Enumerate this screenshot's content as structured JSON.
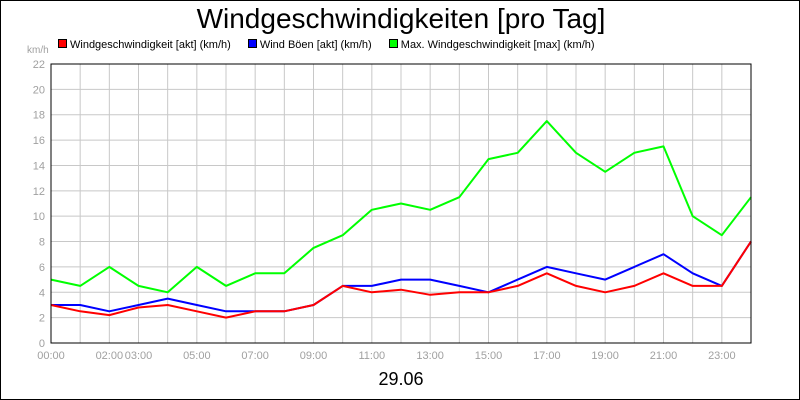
{
  "chart_data": {
    "type": "line",
    "title": "Windgeschwindigkeiten [pro Tag]",
    "unit_label": "km/h",
    "xlabel": "29.06",
    "x_ticks": [
      "00:00",
      "02:00",
      "03:00",
      "05:00",
      "07:00",
      "09:00",
      "11:00",
      "13:00",
      "15:00",
      "17:00",
      "19:00",
      "21:00",
      "23:00"
    ],
    "x_tick_hours": [
      0,
      2,
      3,
      5,
      7,
      9,
      11,
      13,
      15,
      17,
      19,
      21,
      23
    ],
    "x_range_hours": [
      0,
      24
    ],
    "ylim": [
      0,
      22
    ],
    "y_ticks": [
      "0",
      "2",
      "4",
      "6",
      "8",
      "10",
      "12",
      "14",
      "16",
      "18",
      "20",
      "22"
    ],
    "grid": true,
    "legend_position": "top",
    "series": [
      {
        "name": "Windgeschwindigkeit [akt] (km/h)",
        "color": "#ff0000",
        "hours": [
          0,
          1,
          2,
          3,
          4,
          5,
          6,
          7,
          8,
          9,
          10,
          11,
          12,
          13,
          14,
          15,
          16,
          17,
          18,
          19,
          20,
          21,
          22,
          23,
          24
        ],
        "values": [
          3.0,
          2.5,
          2.2,
          2.8,
          3.0,
          2.5,
          2.0,
          2.5,
          2.5,
          3.0,
          4.5,
          4.0,
          4.2,
          3.8,
          4.0,
          4.0,
          4.5,
          5.5,
          4.5,
          4.0,
          4.5,
          5.5,
          4.5,
          4.5,
          8.0
        ]
      },
      {
        "name": "Wind Böen [akt] (km/h)",
        "color": "#0000ff",
        "hours": [
          0,
          1,
          2,
          3,
          4,
          5,
          6,
          7,
          8,
          9,
          10,
          11,
          12,
          13,
          14,
          15,
          16,
          17,
          18,
          19,
          20,
          21,
          22,
          23,
          24
        ],
        "values": [
          3.0,
          3.0,
          2.5,
          3.0,
          3.5,
          3.0,
          2.5,
          2.5,
          2.5,
          3.0,
          4.5,
          4.5,
          5.0,
          5.0,
          4.5,
          4.0,
          5.0,
          6.0,
          5.5,
          5.0,
          6.0,
          7.0,
          5.5,
          4.5,
          8.0
        ]
      },
      {
        "name": "Max. Windgeschwindigkeit [max] (km/h)",
        "color": "#00ff00",
        "hours": [
          0,
          1,
          2,
          3,
          4,
          5,
          6,
          7,
          8,
          9,
          10,
          11,
          12,
          13,
          14,
          15,
          16,
          17,
          18,
          19,
          20,
          21,
          22,
          23,
          24
        ],
        "values": [
          5.0,
          4.5,
          6.0,
          4.5,
          4.0,
          6.0,
          4.5,
          5.5,
          5.5,
          7.5,
          8.5,
          10.5,
          11.0,
          10.5,
          11.5,
          14.5,
          15.0,
          17.5,
          15.0,
          13.5,
          15.0,
          15.5,
          10.0,
          8.5,
          11.5
        ]
      }
    ]
  }
}
